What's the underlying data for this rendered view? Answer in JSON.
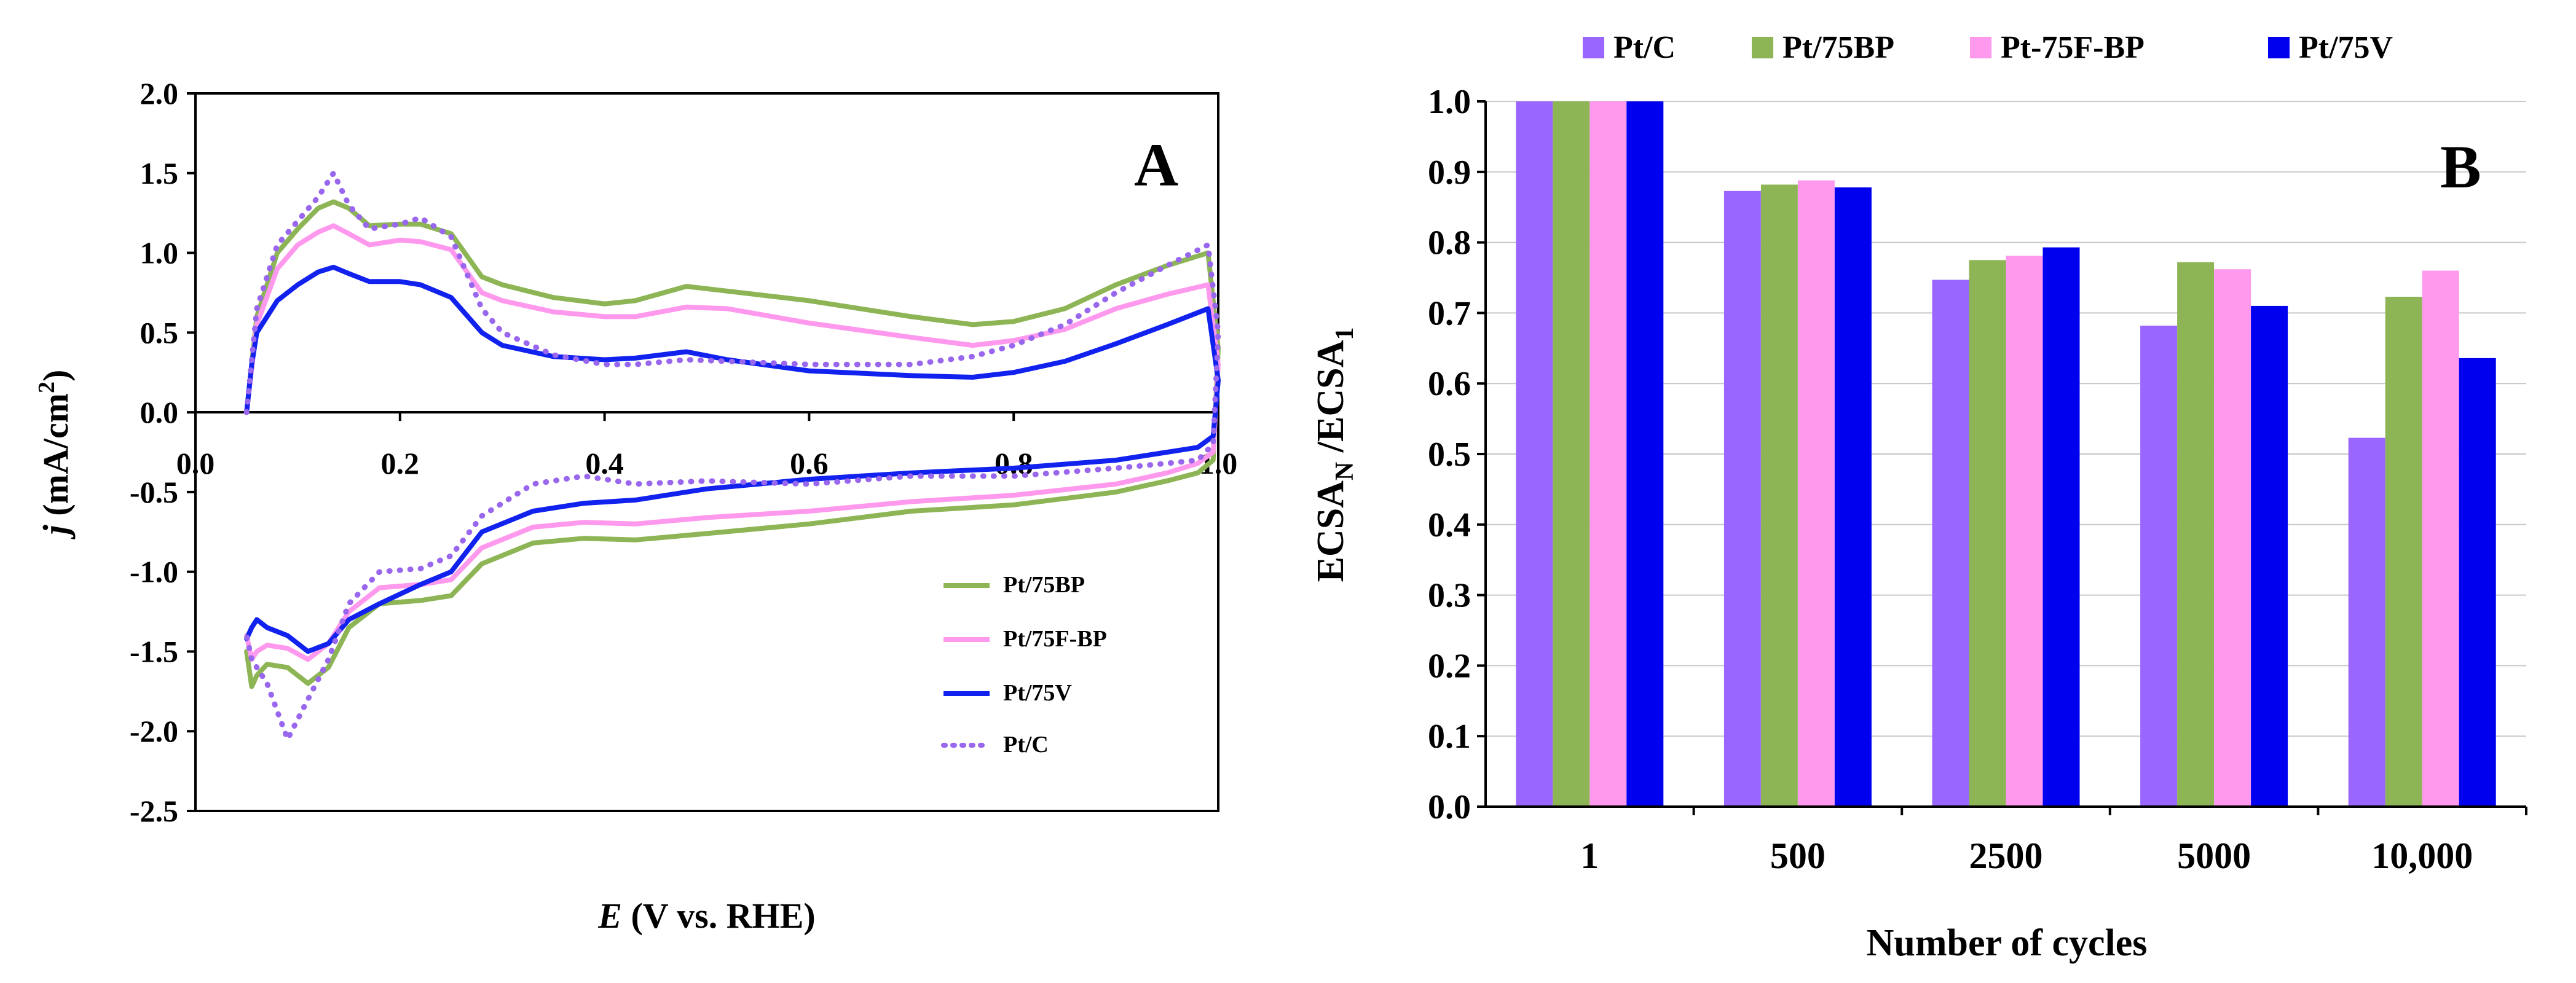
{
  "chart_data": [
    {
      "type": "line",
      "panel_label": "A",
      "xlabel_var": "E",
      "xlabel_rest": " (V vs. RHE)",
      "ylabel_var": "j",
      "ylabel_rest": " (mA/cm",
      "ylabel_sup": "2",
      "ylabel_close": ")",
      "xlim": [
        0,
        1.0
      ],
      "ylim": [
        -2.5,
        2.0
      ],
      "xticks": [
        0.0,
        0.2,
        0.4,
        0.6,
        0.8,
        1.0
      ],
      "xtick_labels": [
        "0.0",
        "0.2",
        "0.4",
        "0.6",
        "0.8",
        "1.0"
      ],
      "yticks": [
        2.0,
        1.5,
        1.0,
        0.5,
        0.0,
        -0.5,
        -1.0,
        -1.5,
        -2.0,
        -2.5
      ],
      "ytick_labels": [
        "2.0",
        "1.5",
        "1.0",
        "0.5",
        "0.0",
        "-0.5",
        "-1.0",
        "-1.5",
        "-2.0",
        "-2.5"
      ],
      "legend": [
        "Pt/75BP",
        "Pt/75F-BP",
        "Pt/75V",
        "Pt/C"
      ],
      "series": [
        {
          "name": "Pt/75BP",
          "color": "#8db555",
          "dashed": false,
          "x": [
            0.05,
            0.06,
            0.08,
            0.1,
            0.12,
            0.135,
            0.15,
            0.17,
            0.2,
            0.22,
            0.25,
            0.28,
            0.3,
            0.35,
            0.4,
            0.43,
            0.48,
            0.52,
            0.6,
            0.7,
            0.76,
            0.8,
            0.85,
            0.9,
            0.95,
            0.99,
            1.0,
            0.995,
            0.98,
            0.95,
            0.9,
            0.8,
            0.7,
            0.6,
            0.5,
            0.43,
            0.38,
            0.33,
            0.28,
            0.25,
            0.22,
            0.18,
            0.15,
            0.13,
            0.11,
            0.09,
            0.07,
            0.06,
            0.055,
            0.05
          ],
          "y": [
            0.0,
            0.6,
            1.0,
            1.15,
            1.28,
            1.32,
            1.28,
            1.17,
            1.18,
            1.18,
            1.12,
            0.85,
            0.8,
            0.72,
            0.68,
            0.7,
            0.79,
            0.76,
            0.7,
            0.6,
            0.55,
            0.57,
            0.65,
            0.8,
            0.92,
            1.0,
            0.4,
            -0.3,
            -0.38,
            -0.43,
            -0.5,
            -0.58,
            -0.62,
            -0.7,
            -0.76,
            -0.8,
            -0.79,
            -0.82,
            -0.95,
            -1.15,
            -1.18,
            -1.2,
            -1.35,
            -1.6,
            -1.7,
            -1.6,
            -1.58,
            -1.65,
            -1.72,
            -1.5
          ]
        },
        {
          "name": "Pt/75F-BP",
          "color": "#ff99ee",
          "dashed": false,
          "x": [
            0.05,
            0.06,
            0.08,
            0.1,
            0.12,
            0.135,
            0.15,
            0.17,
            0.2,
            0.22,
            0.25,
            0.28,
            0.3,
            0.35,
            0.4,
            0.43,
            0.48,
            0.52,
            0.6,
            0.7,
            0.76,
            0.8,
            0.85,
            0.9,
            0.95,
            0.99,
            1.0,
            0.995,
            0.98,
            0.95,
            0.9,
            0.8,
            0.7,
            0.6,
            0.5,
            0.43,
            0.38,
            0.33,
            0.28,
            0.25,
            0.22,
            0.18,
            0.15,
            0.13,
            0.11,
            0.09,
            0.07,
            0.06,
            0.055,
            0.05
          ],
          "y": [
            0.0,
            0.55,
            0.9,
            1.05,
            1.13,
            1.17,
            1.12,
            1.05,
            1.08,
            1.07,
            1.02,
            0.75,
            0.7,
            0.63,
            0.6,
            0.6,
            0.66,
            0.65,
            0.56,
            0.47,
            0.42,
            0.45,
            0.52,
            0.65,
            0.74,
            0.8,
            0.3,
            -0.25,
            -0.32,
            -0.38,
            -0.45,
            -0.52,
            -0.56,
            -0.62,
            -0.66,
            -0.7,
            -0.69,
            -0.72,
            -0.85,
            -1.05,
            -1.08,
            -1.1,
            -1.25,
            -1.45,
            -1.55,
            -1.48,
            -1.46,
            -1.5,
            -1.55,
            -1.4
          ]
        },
        {
          "name": "Pt/75V",
          "color": "#1122ee",
          "dashed": false,
          "x": [
            0.05,
            0.055,
            0.06,
            0.08,
            0.1,
            0.12,
            0.135,
            0.15,
            0.17,
            0.2,
            0.22,
            0.25,
            0.28,
            0.3,
            0.35,
            0.4,
            0.43,
            0.48,
            0.52,
            0.6,
            0.7,
            0.76,
            0.8,
            0.85,
            0.9,
            0.95,
            0.99,
            1.0,
            0.995,
            0.98,
            0.95,
            0.9,
            0.8,
            0.7,
            0.6,
            0.5,
            0.43,
            0.38,
            0.33,
            0.28,
            0.25,
            0.22,
            0.18,
            0.15,
            0.13,
            0.11,
            0.09,
            0.07,
            0.06,
            0.055,
            0.05
          ],
          "y": [
            0.0,
            0.3,
            0.5,
            0.7,
            0.8,
            0.88,
            0.91,
            0.87,
            0.82,
            0.82,
            0.8,
            0.72,
            0.5,
            0.42,
            0.35,
            0.33,
            0.34,
            0.38,
            0.33,
            0.26,
            0.23,
            0.22,
            0.25,
            0.32,
            0.43,
            0.55,
            0.65,
            0.2,
            -0.15,
            -0.22,
            -0.25,
            -0.3,
            -0.35,
            -0.38,
            -0.42,
            -0.48,
            -0.55,
            -0.57,
            -0.62,
            -0.75,
            -1.0,
            -1.08,
            -1.2,
            -1.3,
            -1.45,
            -1.5,
            -1.4,
            -1.35,
            -1.3,
            -1.35,
            -1.42
          ]
        },
        {
          "name": "Pt/C",
          "color": "#9966ee",
          "dashed": true,
          "x": [
            0.05,
            0.06,
            0.08,
            0.1,
            0.12,
            0.135,
            0.15,
            0.17,
            0.2,
            0.22,
            0.25,
            0.28,
            0.3,
            0.35,
            0.4,
            0.43,
            0.48,
            0.52,
            0.6,
            0.7,
            0.76,
            0.8,
            0.85,
            0.9,
            0.95,
            0.99,
            1.0,
            0.995,
            0.98,
            0.95,
            0.9,
            0.8,
            0.7,
            0.6,
            0.5,
            0.43,
            0.38,
            0.33,
            0.28,
            0.25,
            0.22,
            0.18,
            0.15,
            0.13,
            0.11,
            0.09,
            0.07,
            0.06,
            0.055,
            0.05
          ],
          "y": [
            0.0,
            0.65,
            1.05,
            1.2,
            1.35,
            1.5,
            1.3,
            1.15,
            1.18,
            1.22,
            1.1,
            0.65,
            0.5,
            0.36,
            0.3,
            0.3,
            0.33,
            0.32,
            0.3,
            0.3,
            0.35,
            0.42,
            0.55,
            0.75,
            0.92,
            1.05,
            0.5,
            -0.2,
            -0.3,
            -0.32,
            -0.35,
            -0.4,
            -0.4,
            -0.45,
            -0.43,
            -0.45,
            -0.4,
            -0.45,
            -0.65,
            -0.9,
            -0.98,
            -1.0,
            -1.2,
            -1.55,
            -1.8,
            -2.05,
            -1.7,
            -1.6,
            -1.55,
            -1.4
          ]
        }
      ]
    },
    {
      "type": "bar",
      "panel_label": "B",
      "xlabel": "Number of cycles",
      "ylabel_parts": [
        "ECSA",
        "N",
        " /ECSA",
        "1"
      ],
      "ylim": [
        0.0,
        1.0
      ],
      "yticks": [
        1.0,
        0.9,
        0.8,
        0.7,
        0.6,
        0.5,
        0.4,
        0.3,
        0.2,
        0.1,
        0.0
      ],
      "ytick_labels": [
        "1.0",
        "0.9",
        "0.8",
        "0.7",
        "0.6",
        "0.5",
        "0.4",
        "0.3",
        "0.2",
        "0.1",
        "0.0"
      ],
      "categories": [
        "1",
        "500",
        "2500",
        "5000",
        "10,000"
      ],
      "series": [
        {
          "name": "Pt/C",
          "color": "#9966ff",
          "values": [
            1.0,
            0.873,
            0.747,
            0.682,
            0.523
          ]
        },
        {
          "name": "Pt/75BP",
          "color": "#8db555",
          "values": [
            1.0,
            0.882,
            0.775,
            0.772,
            0.723
          ]
        },
        {
          "name": "Pt-75F-BP",
          "color": "#ff99ee",
          "values": [
            1.0,
            0.888,
            0.781,
            0.762,
            0.76
          ]
        },
        {
          "name": "Pt/75V",
          "color": "#0000ee",
          "values": [
            1.0,
            0.878,
            0.793,
            0.71,
            0.636
          ]
        }
      ]
    }
  ]
}
